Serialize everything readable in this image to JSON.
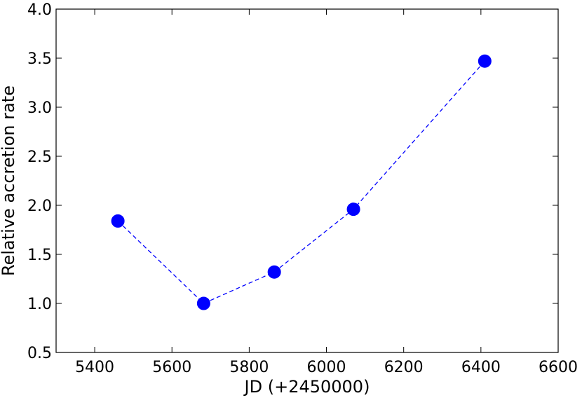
{
  "chart_data": {
    "type": "line",
    "title": "",
    "xlabel": "JD (+2450000)",
    "ylabel": "Relative accretion rate",
    "xlim": [
      5300,
      6600
    ],
    "ylim": [
      0.5,
      4.0
    ],
    "xticks": [
      5400,
      5600,
      5800,
      6000,
      6200,
      6400,
      6600
    ],
    "yticks": [
      0.5,
      1.0,
      1.5,
      2.0,
      2.5,
      3.0,
      3.5,
      4.0
    ],
    "grid": false,
    "series": [
      {
        "x": [
          5460,
          5682,
          5865,
          6070,
          6410
        ],
        "y": [
          1.84,
          1.0,
          1.32,
          1.96,
          3.47
        ],
        "color": "#0000ff",
        "line_style": "dashed",
        "marker": "circle"
      }
    ]
  }
}
